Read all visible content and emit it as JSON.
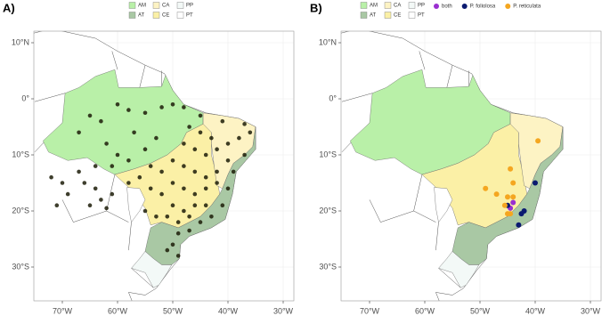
{
  "axes": {
    "xticks": [
      {
        "value": -70,
        "label": "70°W"
      },
      {
        "value": -60,
        "label": "60°W"
      },
      {
        "value": -50,
        "label": "50°W"
      },
      {
        "value": -40,
        "label": "40°W"
      },
      {
        "value": -30,
        "label": "30°W"
      }
    ],
    "yticks": [
      {
        "value": 10,
        "label": "10°N"
      },
      {
        "value": 0,
        "label": "0°"
      },
      {
        "value": -10,
        "label": "10°S"
      },
      {
        "value": -20,
        "label": "20°S"
      },
      {
        "value": -30,
        "label": "30°S"
      }
    ]
  },
  "biomes": [
    {
      "code": "AM",
      "color": "#b9f0a8"
    },
    {
      "code": "AT",
      "color": "#a9c8a4"
    },
    {
      "code": "CA",
      "color": "#fdf3c4"
    },
    {
      "code": "CE",
      "color": "#fbf0a6"
    },
    {
      "code": "PP",
      "color": "#f3f9f7"
    },
    {
      "code": "PT",
      "color": "#ffffff"
    }
  ],
  "panels": [
    {
      "label": "A)",
      "point_groups": [
        {
          "color": "#1c1c08",
          "lon": [
            -60,
            -58,
            -55,
            -52,
            -50,
            -48,
            -63,
            -65,
            -67,
            -62,
            -60,
            -58,
            -55,
            -53,
            -57,
            -61,
            -64,
            -67,
            -70,
            -72,
            -64,
            -63,
            -61,
            -69,
            -65,
            -71,
            -62,
            -66,
            -47,
            -45,
            -43,
            -48,
            -46,
            -44,
            -42,
            -40,
            -38,
            -36,
            -50,
            -48,
            -46,
            -44,
            -42,
            -40,
            -52,
            -50,
            -48,
            -46,
            -44,
            -42,
            -54,
            -52,
            -50,
            -48,
            -46,
            -44,
            -55,
            -53,
            -51,
            -49,
            -47,
            -45,
            -43,
            -41,
            -40,
            -39,
            -37,
            -49,
            -50,
            -49,
            -51,
            -47,
            -56,
            -58,
            -54,
            -45,
            -41,
            -37
          ],
          "lat": [
            -1,
            -2,
            -2.5,
            -1.5,
            -1,
            -1.5,
            -4,
            -3,
            -6,
            -8,
            -10,
            -11,
            -9,
            -7,
            -6,
            -12,
            -12,
            -13,
            -15,
            -14,
            -16,
            -18,
            -17,
            -17,
            -19,
            -19,
            -19.5,
            -15,
            -5,
            -6,
            -7,
            -8,
            -9,
            -10,
            -9,
            -8,
            -7,
            -6,
            -11,
            -12,
            -13,
            -14,
            -13,
            -11,
            -13,
            -15,
            -16,
            -17,
            -16,
            -15,
            -16,
            -17,
            -19,
            -20,
            -19,
            -19,
            -20,
            -21,
            -21,
            -22,
            -21,
            -22,
            -21,
            -19,
            -16,
            -13,
            -10,
            -24,
            -26,
            -28,
            -27,
            -23.5,
            -14,
            -15,
            -12,
            -3,
            -4,
            -4.5
          ]
        }
      ]
    },
    {
      "label": "B)",
      "point_groups": [
        {
          "name": "both",
          "color": "#9a2fd0",
          "lon": [
            -44.5,
            -44
          ],
          "lat": [
            -19.5,
            -18.5
          ]
        },
        {
          "name": "P. foliolosa",
          "color": "#0b1a70",
          "lon": [
            -40,
            -42,
            -42.5,
            -43,
            -45
          ],
          "lat": [
            -15,
            -20,
            -20.5,
            -22.5,
            -19
          ]
        },
        {
          "name": "P. reticulata",
          "color": "#f4a620",
          "lon": [
            -39.5,
            -44.5,
            -44,
            -49,
            -47,
            -45,
            -44,
            -45.5,
            -45,
            -44.5
          ],
          "lat": [
            -7.5,
            -12.5,
            -15,
            -16,
            -17,
            -17.5,
            -17.5,
            -19,
            -20.5,
            -20.5
          ]
        }
      ]
    }
  ]
}
